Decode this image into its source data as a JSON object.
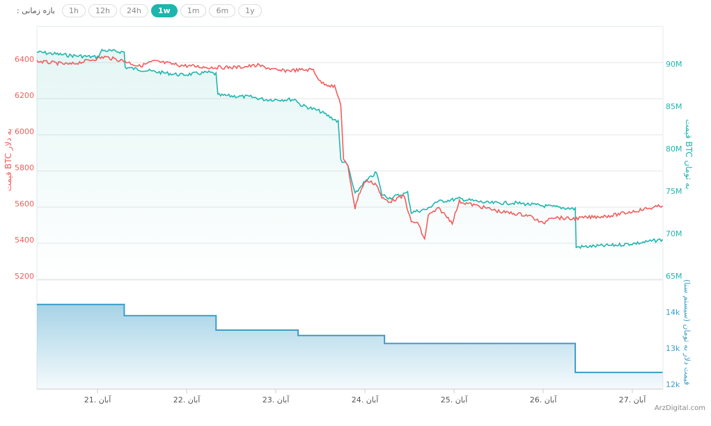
{
  "range_selector": {
    "label": ": بازه زمانی",
    "options": [
      "1h",
      "12h",
      "24h",
      "1w",
      "1m",
      "6m",
      "1y"
    ],
    "selected": "1w"
  },
  "watermark": "ArzDigital.com",
  "colors": {
    "usd": "#f25c5c",
    "toman": "#1fb5ad",
    "dollar_toman": "#3a9dc9",
    "active": "#1fb5ad"
  },
  "chart_data": {
    "type": "line",
    "x_ticks": [
      {
        "day": 21,
        "label": "21. آبان"
      },
      {
        "day": 22,
        "label": "22. آبان"
      },
      {
        "day": 23,
        "label": "23. آبان"
      },
      {
        "day": 24,
        "label": "24. آبان"
      },
      {
        "day": 25,
        "label": "25. آبان"
      },
      {
        "day": 26,
        "label": "26. آبان"
      },
      {
        "day": 27,
        "label": "27. آبان"
      }
    ],
    "xlim": [
      20.32,
      27.34
    ],
    "axes": {
      "left": {
        "label": "قیمت BTC به دلار",
        "ylim": [
          5200,
          6600
        ],
        "ticks": [
          6400,
          6200,
          6000,
          5800,
          5600,
          5400,
          5200
        ]
      },
      "right_top": {
        "label": "قیمت BTC به تومان",
        "ylim": [
          65,
          95
        ],
        "ticks": [
          "90M",
          "85M",
          "80M",
          "75M",
          "70M",
          "65M"
        ],
        "tick_values": [
          90,
          85,
          80,
          75,
          70,
          65
        ]
      },
      "right_bottom": {
        "label": "قیمت دلار به تومان (سیستم سنا)",
        "ylim": [
          11.9,
          14.9
        ],
        "ticks": [
          "14k",
          "13k",
          "12k"
        ],
        "tick_values": [
          14,
          13,
          12
        ]
      }
    },
    "series": [
      {
        "name": "BTC/USD",
        "axis": "left",
        "points": [
          [
            20.32,
            6388
          ],
          [
            20.69,
            6370
          ],
          [
            21.08,
            6412
          ],
          [
            21.31,
            6388
          ],
          [
            21.47,
            6360
          ],
          [
            21.63,
            6388
          ],
          [
            21.94,
            6365
          ],
          [
            22.25,
            6354
          ],
          [
            22.56,
            6354
          ],
          [
            22.8,
            6365
          ],
          [
            23.03,
            6335
          ],
          [
            23.42,
            6342
          ],
          [
            23.5,
            6273
          ],
          [
            23.66,
            6246
          ],
          [
            23.73,
            6150
          ],
          [
            23.76,
            5842
          ],
          [
            23.81,
            5804
          ],
          [
            23.89,
            5573
          ],
          [
            23.93,
            5650
          ],
          [
            24.01,
            5727
          ],
          [
            24.13,
            5708
          ],
          [
            24.19,
            5630
          ],
          [
            24.28,
            5612
          ],
          [
            24.44,
            5642
          ],
          [
            24.52,
            5496
          ],
          [
            24.59,
            5496
          ],
          [
            24.67,
            5400
          ],
          [
            24.71,
            5535
          ],
          [
            24.83,
            5573
          ],
          [
            24.98,
            5496
          ],
          [
            25.06,
            5612
          ],
          [
            25.38,
            5573
          ],
          [
            25.53,
            5554
          ],
          [
            25.84,
            5535
          ],
          [
            26.0,
            5488
          ],
          [
            26.08,
            5527
          ],
          [
            26.31,
            5515
          ],
          [
            26.47,
            5522
          ],
          [
            26.78,
            5535
          ],
          [
            27.09,
            5565
          ],
          [
            27.34,
            5588
          ]
        ]
      },
      {
        "name": "BTC/Toman",
        "axis": "right_top",
        "points": [
          [
            20.32,
            91.4
          ],
          [
            20.69,
            91.0
          ],
          [
            21.0,
            90.8
          ],
          [
            21.05,
            91.6
          ],
          [
            21.3,
            91.4
          ],
          [
            21.31,
            89.6
          ],
          [
            21.63,
            89.1
          ],
          [
            21.94,
            88.7
          ],
          [
            22.25,
            89.0
          ],
          [
            22.33,
            88.8
          ],
          [
            22.35,
            86.3
          ],
          [
            22.72,
            86.1
          ],
          [
            22.88,
            85.8
          ],
          [
            23.23,
            85.8
          ],
          [
            23.27,
            85.2
          ],
          [
            23.5,
            84.4
          ],
          [
            23.7,
            83.2
          ],
          [
            23.73,
            78.7
          ],
          [
            23.81,
            78.0
          ],
          [
            23.89,
            74.6
          ],
          [
            23.97,
            75.8
          ],
          [
            24.13,
            77.2
          ],
          [
            24.19,
            74.6
          ],
          [
            24.28,
            74.2
          ],
          [
            24.48,
            74.8
          ],
          [
            24.52,
            72.5
          ],
          [
            24.71,
            72.9
          ],
          [
            24.79,
            73.7
          ],
          [
            25.06,
            74.1
          ],
          [
            25.38,
            73.6
          ],
          [
            25.69,
            73.6
          ],
          [
            26.06,
            73.2
          ],
          [
            26.36,
            72.9
          ],
          [
            26.37,
            68.4
          ],
          [
            26.78,
            68.6
          ],
          [
            27.09,
            68.9
          ],
          [
            27.34,
            69.3
          ]
        ]
      },
      {
        "name": "USD/Toman",
        "axis": "right_bottom",
        "type": "step",
        "points": [
          [
            20.32,
            14.21
          ],
          [
            21.3,
            13.9
          ],
          [
            22.33,
            13.5
          ],
          [
            23.25,
            13.35
          ],
          [
            24.22,
            13.13
          ],
          [
            26.36,
            12.33
          ],
          [
            27.34,
            12.33
          ]
        ]
      }
    ]
  }
}
